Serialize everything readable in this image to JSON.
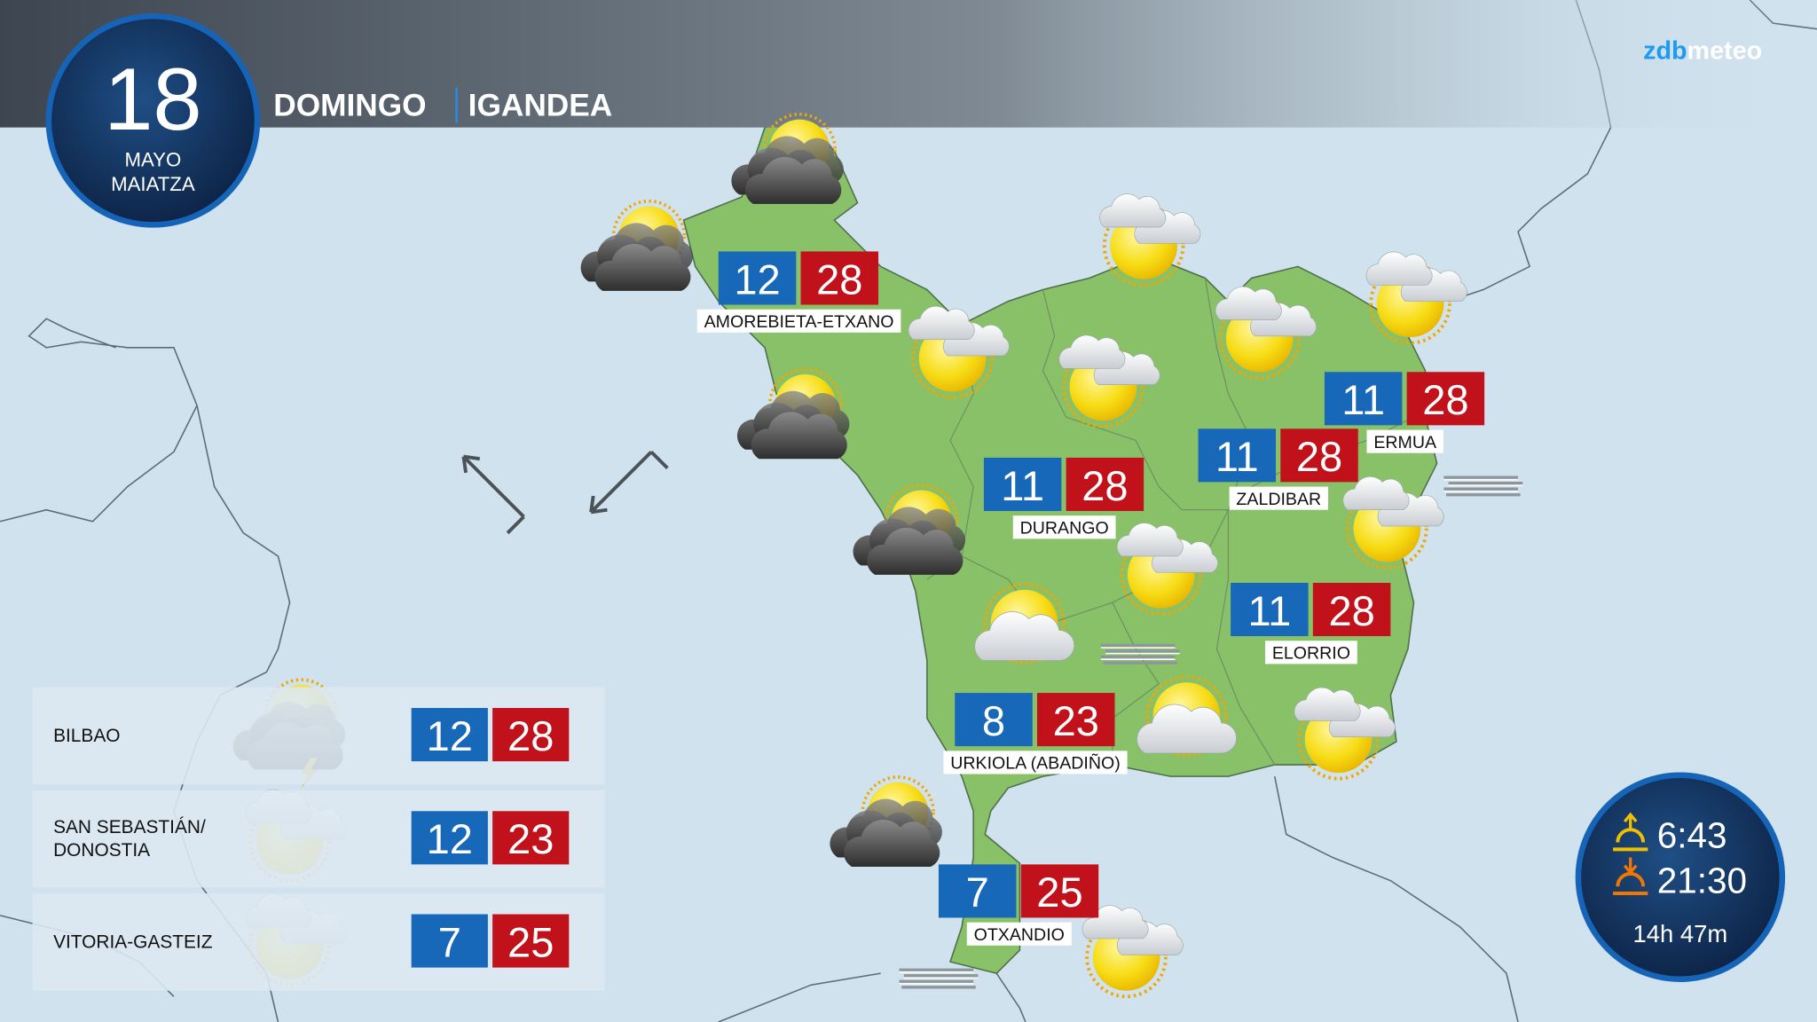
{
  "header": {
    "day": "18",
    "month_es": "MAYO",
    "month_eu": "MAIATZA",
    "weekday_es": "DOMINGO",
    "weekday_eu": "IGANDEA",
    "brand_prefix": "zdb",
    "brand_suffix": "meteo"
  },
  "locations": [
    {
      "name": "AMOREBIETA-ETXANO",
      "min": 12,
      "max": 28
    },
    {
      "name": "DURANGO",
      "min": 11,
      "max": 28
    },
    {
      "name": "ZALDIBAR",
      "min": 11,
      "max": 28
    },
    {
      "name": "ERMUA",
      "min": 11,
      "max": 28
    },
    {
      "name": "ELORRIO",
      "min": 11,
      "max": 28
    },
    {
      "name": "URKIOLA (ABADIÑO)",
      "min": 8,
      "max": 23
    },
    {
      "name": "OTXANDIO",
      "min": 7,
      "max": 25
    }
  ],
  "cities": [
    {
      "lines": [
        "BILBAO"
      ],
      "min": 12,
      "max": 28
    },
    {
      "lines": [
        "SAN SEBASTIÁN/",
        "DONOSTIA"
      ],
      "min": 12,
      "max": 23
    },
    {
      "lines": [
        "VITORIA-GASTEIZ"
      ],
      "min": 7,
      "max": 25
    }
  ],
  "sun": {
    "sunrise": "6:43",
    "sunset": "21:30",
    "daylight": "14h 47m"
  }
}
